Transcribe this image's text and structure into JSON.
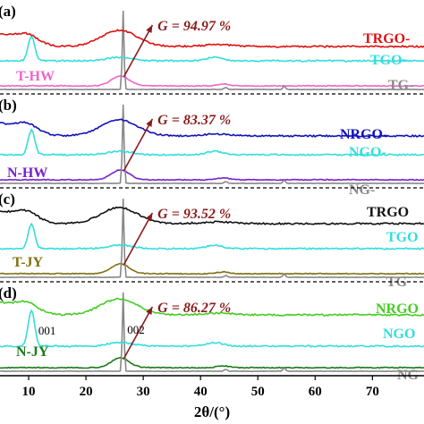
{
  "chart_data": {
    "type": "line",
    "xlabel": "2θ/(°)",
    "x_ticks": [
      10,
      20,
      30,
      40,
      50,
      60,
      70
    ],
    "xlim": [
      5,
      79
    ],
    "peak_labels": {
      "p001": "001",
      "p002": "002"
    },
    "colors": {
      "T-HW": "#ee66cc",
      "TG-HW": "#888888",
      "TGO-HW": "#33dddd",
      "TRGO-HW": "#dd1111",
      "N-HW": "#7722cc",
      "NG-HW": "#888888",
      "NGO-HW": "#33dddd",
      "NRGO-HW": "#1111bb",
      "T-JY": "#807010",
      "TG-JY": "#888888",
      "TGO-JY": "#33dddd",
      "TRGO-JY": "#111111",
      "N-JY": "#1a7a1a",
      "NG-JY": "#888888",
      "NGO-JY": "#33dddd",
      "NRGO-JY": "#44cc22",
      "arrow": "#8b1a1a",
      "graphitization": "#8b1a1a"
    },
    "panels": [
      {
        "id": "a",
        "label": "(a)",
        "graphitization_label": "G = 94.97 %",
        "series_labels": [
          {
            "series": "TRGO-HW",
            "text": "TRGO-"
          },
          {
            "series": "TGO-HW",
            "text": "TGO-"
          },
          {
            "series": "T-HW",
            "text": "T-HW"
          },
          {
            "series": "TG-HW",
            "text": "TG-"
          }
        ]
      },
      {
        "id": "b",
        "label": "(b)",
        "graphitization_label": "G = 83.37 %",
        "series_labels": [
          {
            "series": "NRGO-HW",
            "text": "NRGO-"
          },
          {
            "series": "NGO-HW",
            "text": "NGO-"
          },
          {
            "series": "N-HW",
            "text": "N-HW"
          },
          {
            "series": "NG-HW",
            "text": "NG-"
          }
        ]
      },
      {
        "id": "c",
        "label": "(c)",
        "graphitization_label": "G = 93.52 %",
        "series_labels": [
          {
            "series": "TRGO-JY",
            "text": "TRGO"
          },
          {
            "series": "TGO-JY",
            "text": "TGO"
          },
          {
            "series": "T-JY",
            "text": "T-JY"
          },
          {
            "series": "TG-JY",
            "text": "TG"
          }
        ]
      },
      {
        "id": "d",
        "label": "(d)",
        "graphitization_label": "G = 86.27 %",
        "series_labels": [
          {
            "series": "NRGO-JY",
            "text": "NRGO"
          },
          {
            "series": "NGO-JY",
            "text": "NGO"
          },
          {
            "series": "N-JY",
            "text": "N-JY"
          },
          {
            "series": "NG-JY",
            "text": "NG"
          }
        ]
      }
    ]
  }
}
